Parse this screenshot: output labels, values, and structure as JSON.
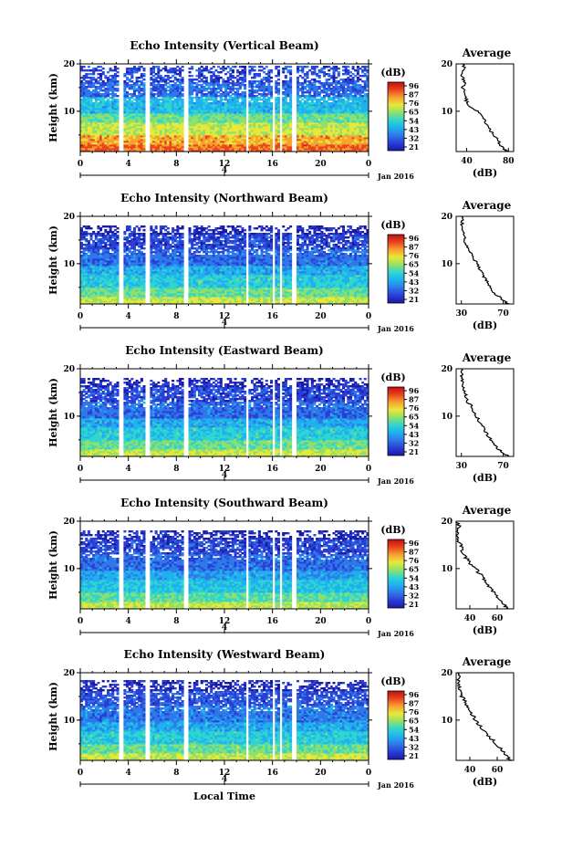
{
  "chart_data": [
    {
      "type": "heatmap",
      "title": "Echo Intensity (Vertical Beam)",
      "ylabel": "Height (km)",
      "xlim": [
        0,
        24
      ],
      "ylim": [
        1.5,
        20
      ],
      "x_ticks": [
        "0",
        "4",
        "8",
        "12",
        "16",
        "20",
        "0"
      ],
      "y_ticks": [
        "10",
        "20"
      ],
      "date_ticks": [
        "4"
      ],
      "date_label": "Jan 2016",
      "colorbar": {
        "title": "(dB)",
        "ticks": [
          "96",
          "87",
          "76",
          "65",
          "54",
          "43",
          "32",
          "21"
        ]
      },
      "profile": {
        "title": "Average",
        "xlabel": "(dB)",
        "x_ticks": [
          "40",
          "80"
        ],
        "xlim": [
          30,
          85
        ],
        "y_ticks": [
          "10",
          "20"
        ]
      },
      "data_gaps_hours": [
        [
          3.3,
          3.6
        ],
        [
          5.4,
          5.8
        ],
        [
          8.6,
          9.0
        ],
        [
          13.8,
          14.0
        ],
        [
          15.9,
          16.2
        ],
        [
          16.6,
          16.9
        ],
        [
          17.6,
          17.9
        ]
      ],
      "trim_top_km": 19.5,
      "lower_values": [
        85,
        78,
        68,
        60
      ],
      "upper_values": [
        48,
        36,
        30
      ],
      "average_profile": {
        "height_km": [
          1.5,
          2,
          3,
          4,
          5,
          6,
          7,
          8,
          9,
          10,
          11,
          12,
          13,
          14,
          15,
          16,
          17,
          18,
          19,
          20
        ],
        "db": [
          80,
          75,
          72,
          70,
          66,
          62,
          60,
          57,
          55,
          50,
          43,
          40,
          39,
          38,
          36,
          38,
          37,
          35,
          38,
          36
        ]
      }
    },
    {
      "type": "heatmap",
      "title": "Echo Intensity (Northward Beam)",
      "ylabel": "Height (km)",
      "xlim": [
        0,
        24
      ],
      "ylim": [
        1.5,
        20
      ],
      "x_ticks": [
        "0",
        "4",
        "8",
        "12",
        "16",
        "20",
        "0"
      ],
      "y_ticks": [
        "10",
        "20"
      ],
      "date_ticks": [
        "4"
      ],
      "date_label": "Jan 2016",
      "colorbar": {
        "title": "(dB)",
        "ticks": [
          "96",
          "87",
          "76",
          "65",
          "54",
          "43",
          "32",
          "21"
        ]
      },
      "profile": {
        "title": "Average",
        "xlabel": "(dB)",
        "x_ticks": [
          "30",
          "70"
        ],
        "xlim": [
          25,
          80
        ],
        "y_ticks": [
          "10",
          "20"
        ]
      },
      "data_gaps_hours": [
        [
          3.3,
          3.6
        ],
        [
          5.4,
          5.8
        ],
        [
          8.6,
          9.0
        ],
        [
          13.8,
          14.0
        ],
        [
          15.9,
          16.2
        ],
        [
          16.6,
          16.9
        ],
        [
          17.6,
          17.9
        ]
      ],
      "trim_top_km": 18,
      "lower_values": [
        68,
        60,
        52,
        45
      ],
      "upper_values": [
        36,
        30,
        25
      ],
      "average_profile": {
        "height_km": [
          1.5,
          2,
          3,
          4,
          5,
          6,
          7,
          8,
          9,
          10,
          11,
          12,
          13,
          14,
          15,
          16,
          17,
          18,
          19,
          20
        ],
        "db": [
          75,
          72,
          66,
          60,
          58,
          55,
          52,
          50,
          47,
          45,
          42,
          40,
          36,
          35,
          33,
          32,
          31,
          30,
          31,
          30
        ]
      }
    },
    {
      "type": "heatmap",
      "title": "Echo Intensity (Eastward Beam)",
      "ylabel": "Height (km)",
      "xlim": [
        0,
        24
      ],
      "ylim": [
        1.5,
        20
      ],
      "x_ticks": [
        "0",
        "4",
        "8",
        "12",
        "16",
        "20",
        "0"
      ],
      "y_ticks": [
        "10",
        "20"
      ],
      "date_ticks": [
        "4"
      ],
      "date_label": "Jan 2016",
      "colorbar": {
        "title": "(dB)",
        "ticks": [
          "96",
          "87",
          "76",
          "65",
          "54",
          "43",
          "32",
          "21"
        ]
      },
      "profile": {
        "title": "Average",
        "xlabel": "(dB)",
        "x_ticks": [
          "30",
          "70"
        ],
        "xlim": [
          25,
          80
        ],
        "y_ticks": [
          "10",
          "20"
        ]
      },
      "data_gaps_hours": [
        [
          3.3,
          3.6
        ],
        [
          5.4,
          5.8
        ],
        [
          8.6,
          9.0
        ],
        [
          13.8,
          14.0
        ],
        [
          15.9,
          16.2
        ],
        [
          16.6,
          16.9
        ],
        [
          17.6,
          17.9
        ]
      ],
      "trim_top_km": 18,
      "lower_values": [
        68,
        60,
        52,
        45
      ],
      "upper_values": [
        36,
        30,
        25
      ],
      "average_profile": {
        "height_km": [
          1.5,
          2,
          3,
          4,
          5,
          6,
          7,
          8,
          9,
          10,
          11,
          12,
          13,
          14,
          15,
          16,
          17,
          18,
          19,
          20
        ],
        "db": [
          76,
          72,
          66,
          61,
          58,
          55,
          52,
          50,
          47,
          44,
          41,
          40,
          36,
          35,
          33,
          32,
          31,
          30,
          31,
          30
        ]
      }
    },
    {
      "type": "heatmap",
      "title": "Echo Intensity (Southward Beam)",
      "ylabel": "Height (km)",
      "xlim": [
        0,
        24
      ],
      "ylim": [
        1.5,
        20
      ],
      "x_ticks": [
        "0",
        "4",
        "8",
        "12",
        "16",
        "20",
        "0"
      ],
      "y_ticks": [
        "10",
        "20"
      ],
      "date_ticks": [
        "4"
      ],
      "date_label": "Jan 2016",
      "colorbar": {
        "title": "(dB)",
        "ticks": [
          "96",
          "87",
          "76",
          "65",
          "54",
          "43",
          "32",
          "21"
        ]
      },
      "profile": {
        "title": "Average",
        "xlabel": "(dB)",
        "x_ticks": [
          "40",
          "60"
        ],
        "xlim": [
          30,
          72
        ],
        "y_ticks": [
          "10",
          "20"
        ]
      },
      "data_gaps_hours": [
        [
          3.3,
          3.6
        ],
        [
          5.4,
          5.8
        ],
        [
          8.6,
          9.0
        ],
        [
          13.8,
          14.0
        ],
        [
          15.9,
          16.2
        ],
        [
          16.6,
          16.9
        ],
        [
          17.6,
          17.9
        ]
      ],
      "trim_top_km": 18,
      "lower_values": [
        66,
        58,
        50,
        44
      ],
      "upper_values": [
        36,
        30,
        25
      ],
      "average_profile": {
        "height_km": [
          1.5,
          2,
          3,
          4,
          5,
          6,
          7,
          8,
          9,
          10,
          11,
          12,
          13,
          14,
          15,
          16,
          17,
          18,
          19,
          20
        ],
        "db": [
          68,
          66,
          64,
          60,
          57,
          55,
          52,
          50,
          47,
          44,
          40,
          38,
          35,
          34,
          33,
          32,
          31,
          30,
          32,
          30
        ]
      }
    },
    {
      "type": "heatmap",
      "title": "Echo Intensity (Westward Beam)",
      "ylabel": "Height (km)",
      "xlabel": "Local Time",
      "xlim": [
        0,
        24
      ],
      "ylim": [
        1.5,
        20
      ],
      "x_ticks": [
        "0",
        "4",
        "8",
        "12",
        "16",
        "20",
        "0"
      ],
      "y_ticks": [
        "10",
        "20"
      ],
      "date_ticks": [
        "4"
      ],
      "date_label": "Jan 2016",
      "colorbar": {
        "title": "(dB)",
        "ticks": [
          "96",
          "87",
          "76",
          "65",
          "54",
          "43",
          "32",
          "21"
        ]
      },
      "profile": {
        "title": "Average",
        "xlabel": "(dB)",
        "x_ticks": [
          "40",
          "60"
        ],
        "xlim": [
          30,
          72
        ],
        "y_ticks": [
          "10",
          "20"
        ]
      },
      "data_gaps_hours": [
        [
          3.3,
          3.6
        ],
        [
          5.4,
          5.8
        ],
        [
          8.6,
          9.0
        ],
        [
          13.8,
          14.0
        ],
        [
          15.9,
          16.2
        ],
        [
          16.6,
          16.9
        ],
        [
          17.6,
          17.9
        ]
      ],
      "trim_top_km": 18.5,
      "lower_values": [
        68,
        60,
        52,
        45
      ],
      "upper_values": [
        38,
        32,
        26
      ],
      "average_profile": {
        "height_km": [
          1.5,
          2,
          3,
          4,
          5,
          6,
          7,
          8,
          9,
          10,
          11,
          12,
          13,
          14,
          15,
          16,
          17,
          18,
          19,
          20
        ],
        "db": [
          70,
          68,
          66,
          62,
          58,
          56,
          53,
          50,
          47,
          44,
          42,
          40,
          38,
          36,
          34,
          33,
          32,
          31,
          33,
          31
        ]
      }
    }
  ],
  "colors": {
    "colormap": [
      "#1a1aa8",
      "#2a3fd6",
      "#2f78ea",
      "#1fb0ef",
      "#2fd6d0",
      "#8fe06a",
      "#e8e83a",
      "#f7a12e",
      "#e84520",
      "#c01010"
    ]
  }
}
